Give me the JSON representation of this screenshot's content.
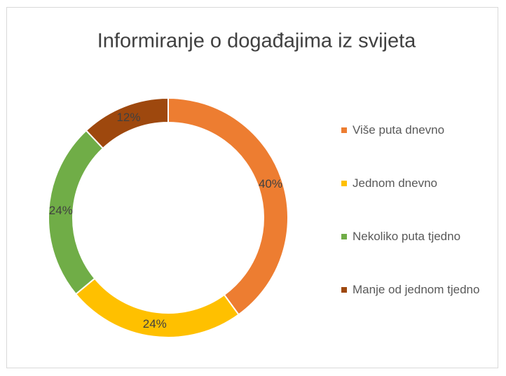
{
  "chart_data": {
    "type": "donut",
    "title": "Informiranje o događajima iz svijeta",
    "categories": [
      "Više puta dnevno",
      "Jednom dnevno",
      "Nekoliko puta tjedno",
      "Manje od jednom tjedno"
    ],
    "values": [
      40,
      24,
      24,
      12
    ],
    "value_labels": [
      "40%",
      "24%",
      "24%",
      "12%"
    ],
    "colors": [
      "#ED7D31",
      "#FFC000",
      "#70AD47",
      "#9E480E"
    ],
    "legend": "right"
  }
}
